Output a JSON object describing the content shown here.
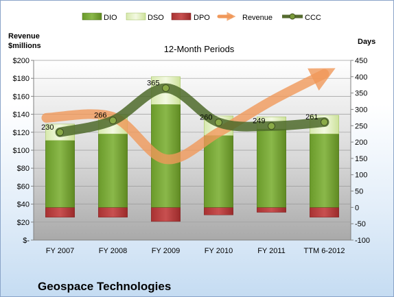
{
  "chart_data": {
    "type": "bar",
    "title": "12-Month Periods",
    "company": "Geospace Technologies",
    "left_axis_unit": [
      "Revenue",
      "$millions"
    ],
    "right_axis_unit": "Days",
    "left_ticks": [
      "$200",
      "$180",
      "$160",
      "$140",
      "$120",
      "$100",
      "$80",
      "$60",
      "$40",
      "$20",
      "$-"
    ],
    "right_ticks": [
      "450",
      "400",
      "350",
      "300",
      "250",
      "200",
      "150",
      "100",
      "50",
      "0",
      "-50",
      "-100"
    ],
    "ylim_left": [
      0,
      200
    ],
    "ylim_right": [
      -100,
      450
    ],
    "categories": [
      "FY 2007",
      "FY 2008",
      "FY 2009",
      "FY 2010",
      "FY 2011",
      "TTM 6-2012"
    ],
    "legend_position": "top",
    "colors": {
      "DIO": "#77a033",
      "DSO": "#e6f2c4",
      "DPO": "#b83a3a",
      "Revenue": "#f0985a",
      "CCC": "#556b2f"
    },
    "series": [
      {
        "name": "DIO",
        "axis": "right",
        "values": [
          205,
          225,
          315,
          220,
          240,
          225
        ]
      },
      {
        "name": "DSO",
        "axis": "right",
        "values": [
          50,
          58,
          85,
          60,
          37,
          57
        ]
      },
      {
        "name": "DPO",
        "axis": "right",
        "values": [
          -30,
          -30,
          -43,
          -23,
          -15,
          -30
        ]
      },
      {
        "name": "Revenue",
        "axis": "left",
        "values": [
          136,
          137,
          90,
          120,
          155,
          185
        ]
      },
      {
        "name": "CCC",
        "axis": "right",
        "values": [
          230,
          266,
          365,
          260,
          249,
          261
        ]
      }
    ],
    "ccc_labels": [
      "230",
      "266",
      "365",
      "260",
      "249",
      "261"
    ]
  }
}
